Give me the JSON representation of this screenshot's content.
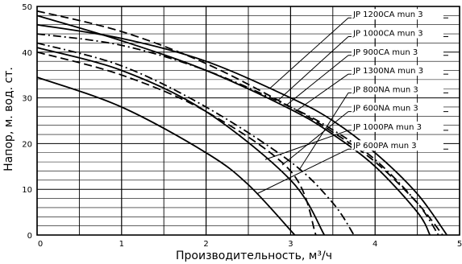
{
  "chart_data": {
    "type": "line",
    "xlabel": "Производительность, м³/ч",
    "ylabel": "Напор, м. вод. ст.",
    "xlim": [
      0,
      5
    ],
    "ylim": [
      0,
      50
    ],
    "x_ticks": [
      "0",
      "1",
      "2",
      "3",
      "4",
      "5"
    ],
    "y_ticks": [
      "0",
      "10",
      "20",
      "30",
      "40",
      "50"
    ],
    "grid": true,
    "legend_position": "right, with leader lines",
    "series": [
      {
        "name": "JP 1200CA  mun 3",
        "dash": "solid",
        "x": [
          0,
          1,
          2,
          3,
          3.5,
          4,
          4.5,
          4.85
        ],
        "y": [
          46,
          43,
          38,
          30,
          25,
          18,
          9,
          0
        ]
      },
      {
        "name": "JP 1000CA  mun 3",
        "dash": "dashed",
        "x": [
          0,
          1,
          2,
          3,
          3.5,
          4,
          4.5,
          4.8
        ],
        "y": [
          49,
          44.5,
          37.5,
          28,
          22.5,
          16,
          7,
          0
        ]
      },
      {
        "name": "JP 900CA  mun 3",
        "dash": "dashdot",
        "x": [
          0,
          1,
          2,
          3,
          3.5,
          4,
          4.5,
          4.75
        ],
        "y": [
          44,
          41.5,
          36,
          28,
          23,
          16.5,
          7,
          0
        ]
      },
      {
        "name": "JP 1300NA  mun 3",
        "dash": "solid",
        "x": [
          0,
          1,
          2,
          3,
          3.5,
          4,
          4.5,
          4.65
        ],
        "y": [
          48,
          42.5,
          36,
          27.5,
          22,
          15,
          5,
          0
        ]
      },
      {
        "name": "JP 800NA  mun 3",
        "dash": "dashdot",
        "x": [
          0,
          1,
          2,
          3,
          3.5,
          3.75
        ],
        "y": [
          42,
          37,
          28,
          16,
          7,
          0
        ]
      },
      {
        "name": "JP 600NA  mun 3",
        "dash": "dashed",
        "x": [
          0,
          1,
          2,
          3,
          3.3
        ],
        "y": [
          40,
          35,
          27,
          14,
          0
        ]
      },
      {
        "name": "JP 1000PA  mun 3",
        "dash": "solid",
        "x": [
          0,
          1,
          2,
          3,
          3.4
        ],
        "y": [
          41,
          36,
          27,
          12,
          0
        ]
      },
      {
        "name": "JP 600PA  mun 3",
        "dash": "solid",
        "x": [
          0,
          1,
          2,
          2.5,
          3.05
        ],
        "y": [
          34.5,
          28,
          18,
          11,
          0
        ]
      }
    ]
  }
}
